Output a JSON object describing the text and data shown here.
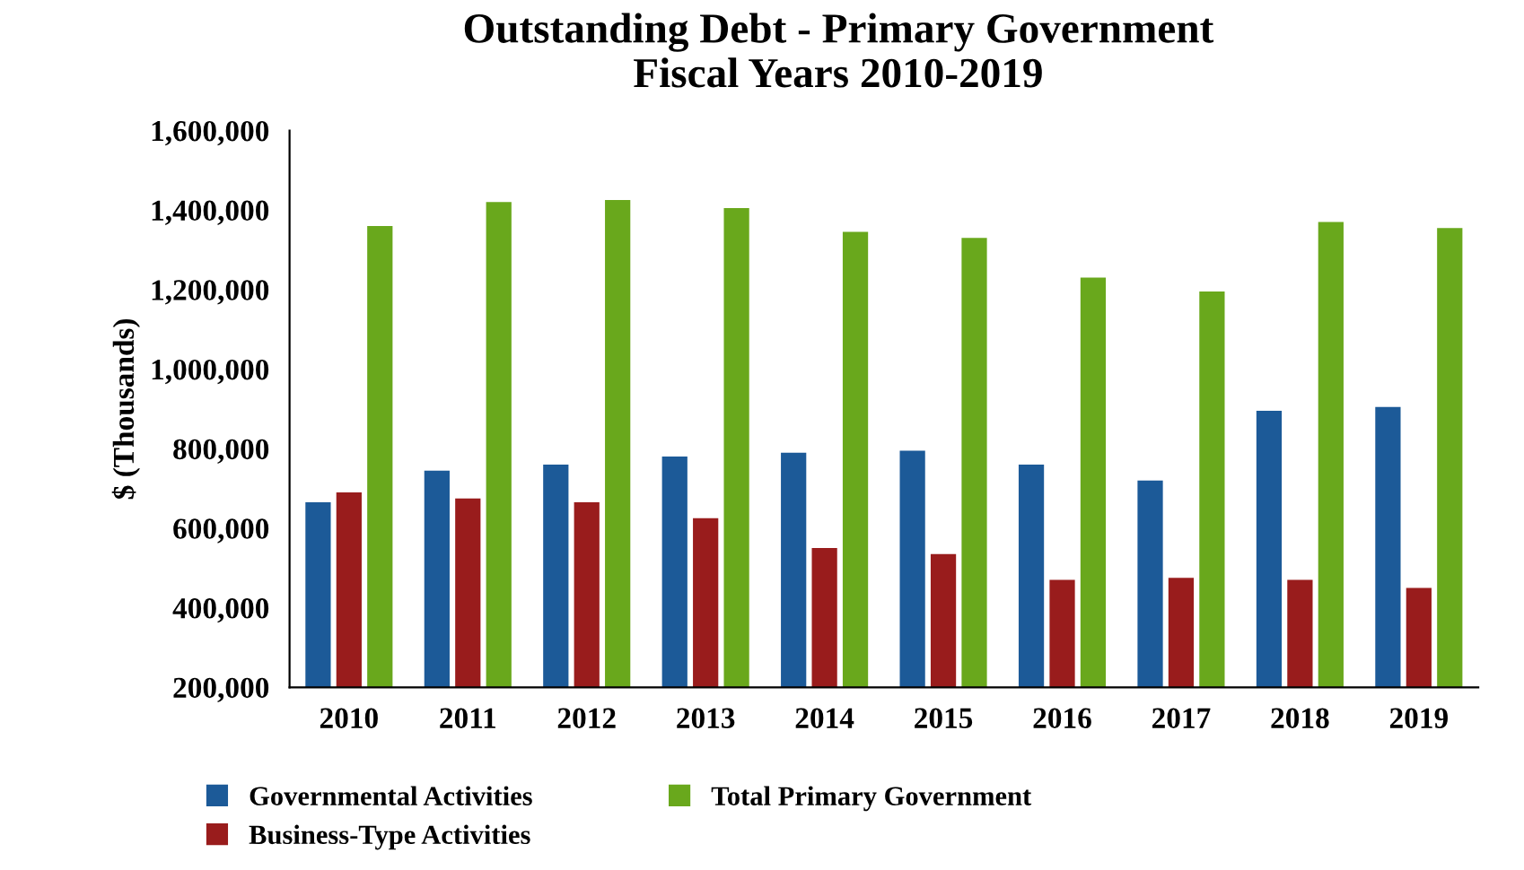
{
  "chart_data": {
    "type": "bar",
    "title": "Outstanding Debt - Primary Government\nFiscal Years 2010-2019",
    "ylabel": "$ (Thousands)",
    "categories": [
      "2010",
      "2011",
      "2012",
      "2013",
      "2014",
      "2015",
      "2016",
      "2017",
      "2018",
      "2019"
    ],
    "series": [
      {
        "name": "Governmental Activities",
        "color": "#1c5a98",
        "values": [
          665000,
          745000,
          760000,
          780000,
          790000,
          795000,
          760000,
          720000,
          895000,
          905000
        ]
      },
      {
        "name": "Business-Type Activities",
        "color": "#991c1c",
        "values": [
          690000,
          675000,
          665000,
          625000,
          550000,
          535000,
          470000,
          475000,
          470000,
          450000
        ]
      },
      {
        "name": "Total Primary Government",
        "color": "#69a81c",
        "values": [
          1360000,
          1420000,
          1425000,
          1405000,
          1345000,
          1330000,
          1230000,
          1195000,
          1370000,
          1355000
        ]
      }
    ],
    "ylim": [
      200000,
      1600000
    ],
    "yticks": [
      {
        "value": 200000,
        "label": "200,000"
      },
      {
        "value": 400000,
        "label": "400,000"
      },
      {
        "value": 600000,
        "label": "600,000"
      },
      {
        "value": 800000,
        "label": "800,000"
      },
      {
        "value": 1000000,
        "label": "1,000,000"
      },
      {
        "value": 1200000,
        "label": "1,200,000"
      },
      {
        "value": 1400000,
        "label": "1,400,000"
      },
      {
        "value": 1600000,
        "label": "1,600,000"
      }
    ],
    "grid": false,
    "legend": "bottom"
  }
}
